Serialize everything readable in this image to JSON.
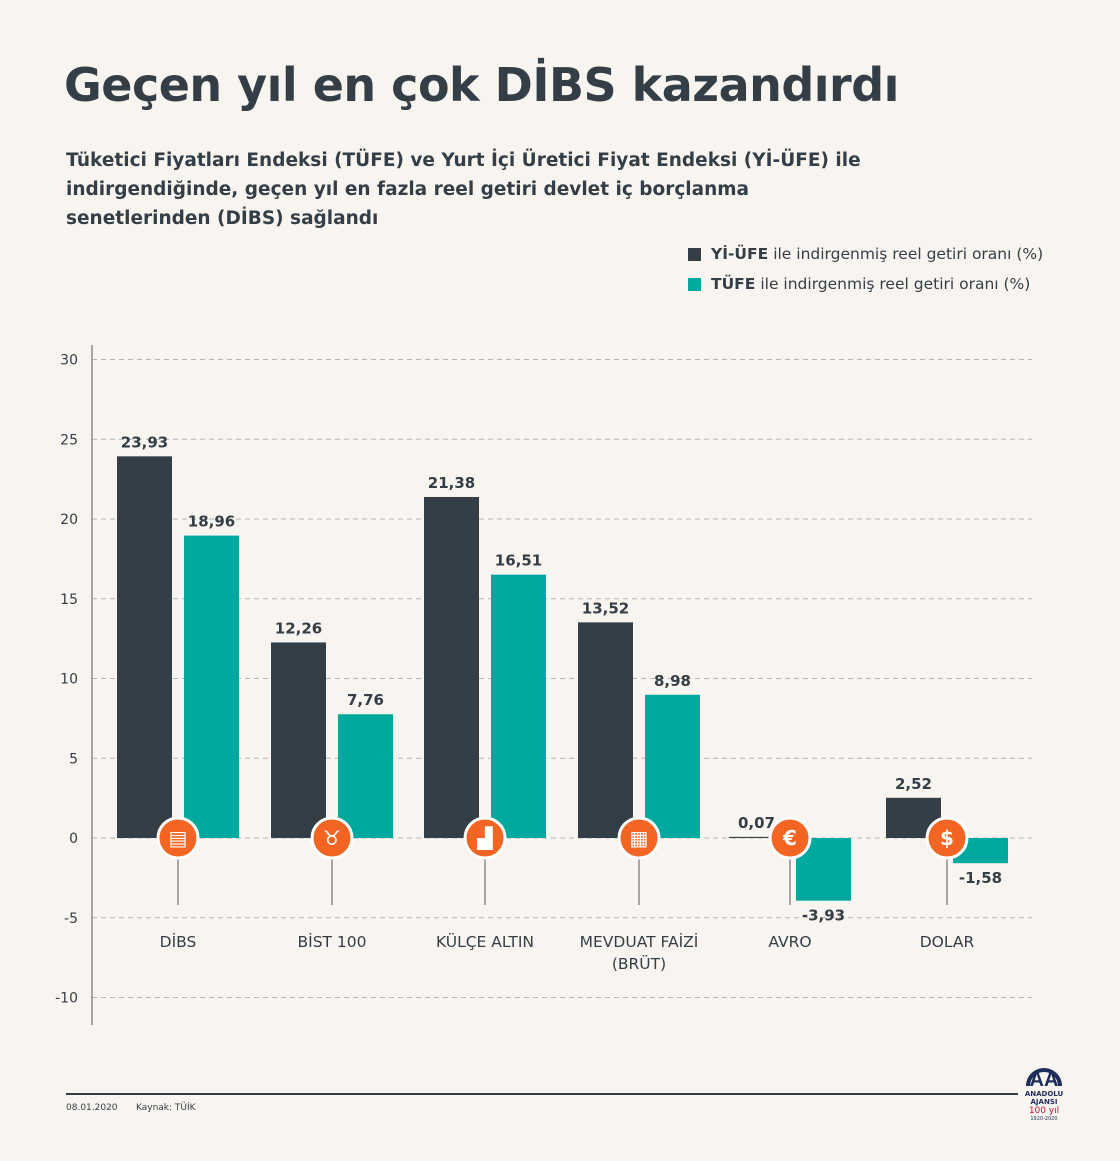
{
  "title": "Geçen yıl en çok DİBS kazandırdı",
  "subtitle": "Tüketici Fiyatları Endeksi (TÜFE) ve Yurt İçi Üretici Fiyat Endeksi (Yİ-ÜFE) ile indirgendiğinde, geçen yıl en fazla reel getiri devlet iç borçlanma senetlerinden (DİBS) sağlandı",
  "legend": [
    {
      "bold": "Yİ-ÜFE",
      "rest": "ile indirgenmiş reel getiri oranı (%)",
      "color": "#343e47"
    },
    {
      "bold": "TÜFE",
      "rest": "ile indirgenmiş reel getiri oranı (%)",
      "color": "#00a99d"
    }
  ],
  "chart_data": {
    "type": "bar",
    "categories": [
      "DİBS",
      "BİST 100",
      "KÜLÇE ALTIN",
      "MEVDUAT FAİZİ\n(BRÜT)",
      "AVRO",
      "DOLAR"
    ],
    "category_icons": [
      "document-icon",
      "bull-icon",
      "gold-bars-icon",
      "money-stack-icon",
      "euro-icon",
      "dollar-icon"
    ],
    "series": [
      {
        "name": "Yİ-ÜFE ile indirgenmiş reel getiri oranı (%)",
        "color": "#343e47",
        "values": [
          23.93,
          12.26,
          21.38,
          13.52,
          0.07,
          2.52
        ],
        "labels": [
          "23,93",
          "12,26",
          "21,38",
          "13,52",
          "0,07",
          "2,52"
        ]
      },
      {
        "name": "TÜFE ile indirgenmiş reel getiri oranı (%)",
        "color": "#00a99d",
        "values": [
          18.96,
          7.76,
          16.51,
          8.98,
          -3.93,
          -1.58
        ],
        "labels": [
          "18,96",
          "7,76",
          "16,51",
          "8,98",
          "-3,93",
          "-1,58"
        ]
      }
    ],
    "yticks": [
      30,
      25,
      20,
      15,
      10,
      5,
      0,
      -5,
      -10
    ],
    "ylim": [
      -10,
      30
    ],
    "grid": true,
    "legend_position": "top-right",
    "icon_color": "#f26522"
  },
  "footer": {
    "date": "08.01.2020",
    "source": "Kaynak: TÜİK"
  },
  "logo": {
    "name": "ANADOLU AJANSI",
    "anniversary": "100 yıl",
    "years": "1920-2020"
  }
}
